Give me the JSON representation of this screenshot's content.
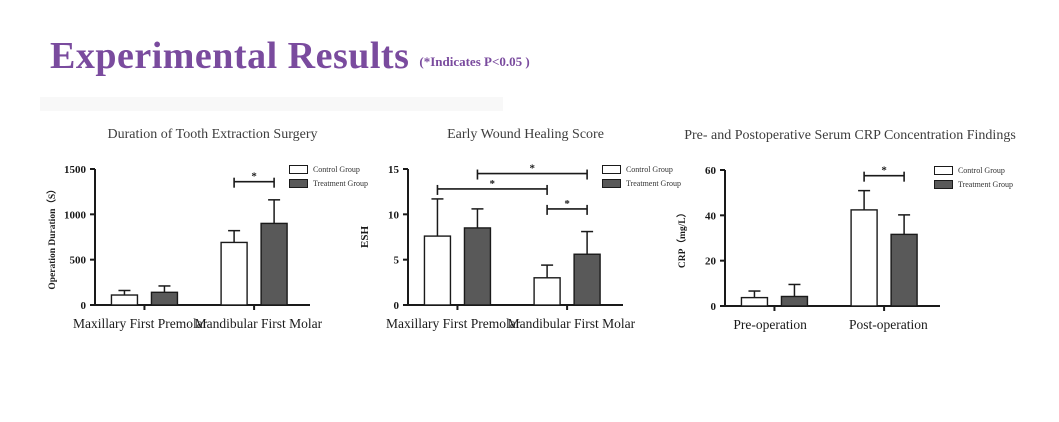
{
  "header": {
    "title": "Experimental Results",
    "subtitle": "(*Indicates P<0.05 )"
  },
  "legend": {
    "control": "Control Group",
    "treatment": "Treatment Group"
  },
  "colors": {
    "accent_purple": "#7A4B9E",
    "bar_control_fill": "#FFFFFF",
    "bar_treatment_fill": "#595959",
    "axis_ink": "#1A1A1A"
  },
  "chart_data": [
    {
      "type": "bar",
      "title": "Duration of Tooth Extraction Surgery",
      "ylabel": "Operation Duration（S）",
      "ylim": [
        0,
        1500
      ],
      "yticks": [
        0,
        500,
        1000,
        1500
      ],
      "categories": [
        "Maxillary First Premolar",
        "Mandibular First Molar"
      ],
      "legend_position": "top-right",
      "series": [
        {
          "name": "Control Group",
          "values": [
            110,
            690
          ],
          "errors": [
            50,
            130
          ]
        },
        {
          "name": "Treatment Group",
          "values": [
            140,
            900
          ],
          "errors": [
            70,
            260
          ]
        }
      ],
      "significance": [
        {
          "between": [
            [
              1,
              0
            ],
            [
              1,
              1
            ]
          ],
          "y": 1360,
          "label": "*"
        }
      ]
    },
    {
      "type": "bar",
      "title": "Early Wound Healing Score",
      "ylabel": "ESH",
      "ylim": [
        0,
        15
      ],
      "yticks": [
        0,
        5,
        10,
        15
      ],
      "categories": [
        "Maxillary First Premolar",
        "Mandibular First Molar"
      ],
      "legend_position": "top-right",
      "series": [
        {
          "name": "Control Group",
          "values": [
            7.6,
            3.0
          ],
          "errors": [
            4.1,
            1.4
          ]
        },
        {
          "name": "Treatment Group",
          "values": [
            8.5,
            5.6
          ],
          "errors": [
            2.1,
            2.5
          ]
        }
      ],
      "significance": [
        {
          "between": [
            [
              0,
              1
            ],
            [
              1,
              1
            ]
          ],
          "y": 14.5,
          "label": "*"
        },
        {
          "between": [
            [
              0,
              0
            ],
            [
              1,
              0
            ]
          ],
          "y": 12.8,
          "label": "*"
        },
        {
          "between": [
            [
              1,
              0
            ],
            [
              1,
              1
            ]
          ],
          "y": 10.6,
          "label": "*"
        }
      ]
    },
    {
      "type": "bar",
      "title": "Pre- and Postoperative Serum CRP Concentration Findings",
      "ylabel": "CRP（mg/L）",
      "ylim": [
        0,
        60
      ],
      "yticks": [
        0,
        20,
        40,
        60
      ],
      "categories": [
        "Pre-operation",
        "Post-operation"
      ],
      "legend_position": "top-right",
      "series": [
        {
          "name": "Control Group",
          "values": [
            3.7,
            42.4
          ],
          "errors": [
            2.9,
            8.5
          ]
        },
        {
          "name": "Treatment Group",
          "values": [
            4.2,
            31.6
          ],
          "errors": [
            5.3,
            8.6
          ]
        }
      ],
      "significance": [
        {
          "between": [
            [
              1,
              0
            ],
            [
              1,
              1
            ]
          ],
          "y": 57.5,
          "label": "*"
        }
      ]
    }
  ]
}
